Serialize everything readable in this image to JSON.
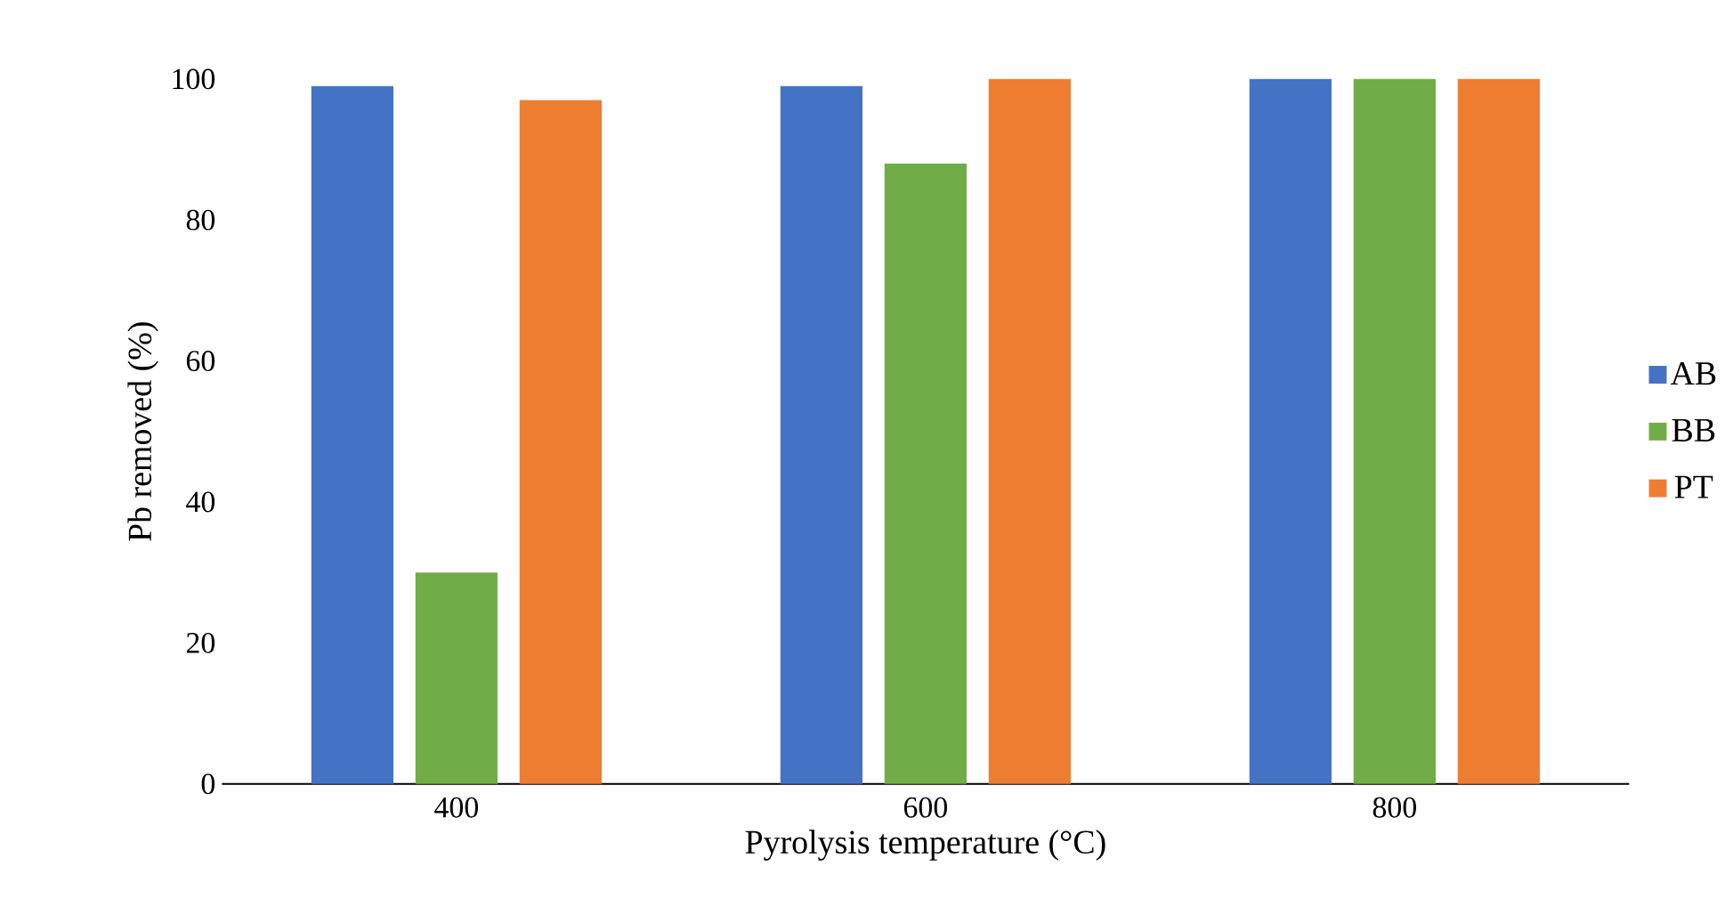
{
  "chart_data": {
    "type": "bar",
    "xlabel": "Pyrolysis temperature (°C)",
    "ylabel": "Pb removed (%)",
    "categories": [
      "400",
      "600",
      "800"
    ],
    "series": [
      {
        "name": "AB",
        "color": "#4472c4",
        "values": [
          99,
          99,
          100
        ]
      },
      {
        "name": "BB",
        "color": "#70ad47",
        "values": [
          30,
          88,
          100
        ]
      },
      {
        "name": "PT",
        "color": "#ed7d31",
        "values": [
          97,
          100,
          100
        ]
      }
    ],
    "ylim": [
      0,
      100
    ],
    "yticks": [
      0,
      20,
      40,
      60,
      80,
      100
    ],
    "grid": false,
    "legend": "right"
  }
}
